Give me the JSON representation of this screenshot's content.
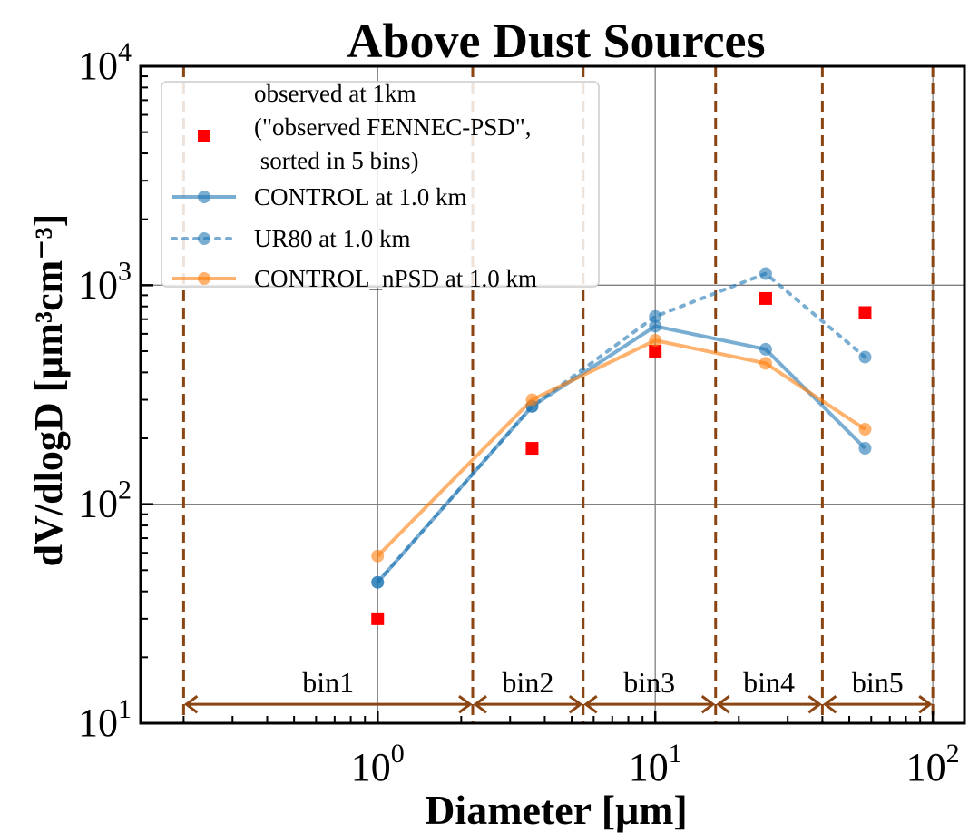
{
  "chart_data": {
    "type": "line",
    "title": "Above Dust Sources",
    "xlabel": "Diameter [μm]",
    "ylabel": "dV/dlogD [μm³cm⁻³]",
    "xscale": "log",
    "yscale": "log",
    "xlim": [
      0.14,
      130
    ],
    "ylim": [
      10,
      10000
    ],
    "grid": true,
    "legend_position": "top-left",
    "x_ticks": [
      {
        "value": 1,
        "base": "10",
        "exp": "0"
      },
      {
        "value": 10,
        "base": "10",
        "exp": "1"
      },
      {
        "value": 100,
        "base": "10",
        "exp": "2"
      }
    ],
    "y_ticks": [
      {
        "value": 10,
        "base": "10",
        "exp": "1"
      },
      {
        "value": 100,
        "base": "10",
        "exp": "2"
      },
      {
        "value": 1000,
        "base": "10",
        "exp": "3"
      },
      {
        "value": 10000,
        "base": "10",
        "exp": "4"
      }
    ],
    "bin_edges": [
      0.2,
      2.2,
      5.5,
      16.5,
      40,
      100
    ],
    "bins": [
      {
        "label": "bin1",
        "from": 0.2,
        "to": 2.2
      },
      {
        "label": "bin2",
        "from": 2.2,
        "to": 5.5
      },
      {
        "label": "bin3",
        "from": 5.5,
        "to": 16.5
      },
      {
        "label": "bin4",
        "from": 16.5,
        "to": 40
      },
      {
        "label": "bin5",
        "from": 40,
        "to": 100
      }
    ],
    "bin_arrow_y": 12.2,
    "colors": {
      "control": "#1f77b4",
      "ur80": "#1f77b4",
      "npsd": "#ff7f0e",
      "observed": "#ff0000",
      "bin_lines": "#8b4513",
      "grid": "#808080"
    },
    "series": [
      {
        "name": "observed at 1km\n(\"observed FENNEC-PSD\",\n sorted in 5 bins)",
        "style": "square",
        "color": "#ff0000",
        "x": [
          1.0,
          3.6,
          10.0,
          25.0,
          57.0
        ],
        "y": [
          30,
          180,
          500,
          870,
          750
        ]
      },
      {
        "name": "CONTROL at 1.0 km",
        "style": "solid",
        "color": "#1f77b4",
        "x": [
          1.0,
          3.6,
          10.0,
          25.0,
          57.0
        ],
        "y": [
          44,
          280,
          650,
          510,
          180
        ]
      },
      {
        "name": "UR80 at 1.0 km",
        "style": "dotted",
        "color": "#1f77b4",
        "x": [
          1.0,
          3.6,
          10.0,
          25.0,
          57.0
        ],
        "y": [
          44,
          280,
          720,
          1130,
          470
        ]
      },
      {
        "name": "CONTROL_nPSD at 1.0 km",
        "style": "solid",
        "color": "#ff7f0e",
        "x": [
          1.0,
          3.6,
          10.0,
          25.0,
          57.0
        ],
        "y": [
          58,
          300,
          560,
          440,
          220
        ]
      }
    ]
  }
}
